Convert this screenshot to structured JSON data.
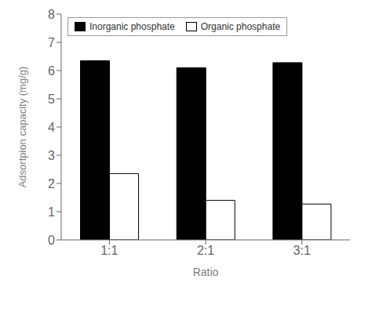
{
  "chart_data": {
    "type": "bar",
    "categories": [
      "1:1",
      "2:1",
      "3:1"
    ],
    "series": [
      {
        "name": "Inorganic phosphate",
        "color": "#000000",
        "values": [
          6.35,
          6.1,
          6.28
        ]
      },
      {
        "name": "Organic phosphate",
        "color": "#ffffff",
        "values": [
          2.35,
          1.4,
          1.27
        ]
      }
    ],
    "xlabel": "Ratio",
    "ylabel": "Adsortpion capacity (mg/g)",
    "ylim": [
      0,
      8
    ],
    "yticks": [
      0,
      1,
      2,
      3,
      4,
      5,
      6,
      7,
      8
    ],
    "grid": false,
    "legend": "upper left"
  }
}
